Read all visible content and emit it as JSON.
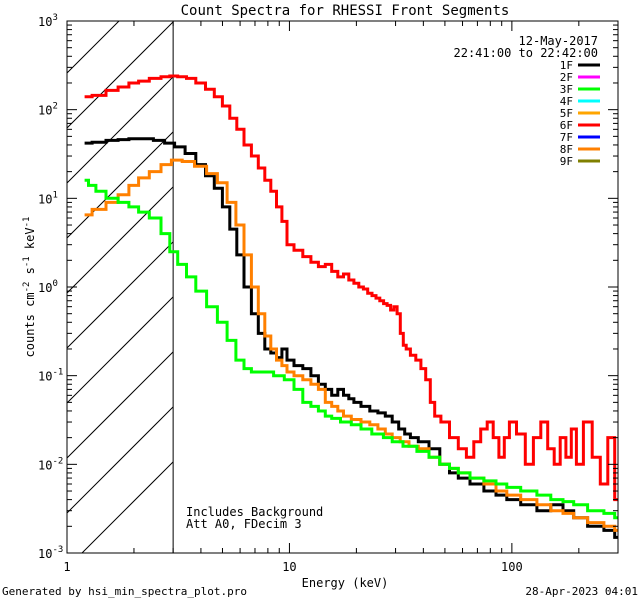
{
  "chart_data": {
    "type": "line",
    "title": "Count Spectra for RHESSI Front Segments",
    "xlabel": "Energy (keV)",
    "ylabel_parts": {
      "base": "counts cm",
      "exp1": "-2",
      "mid1": " s",
      "exp2": "-1",
      "mid2": " keV",
      "exp3": "-1"
    },
    "xscale": "log",
    "yscale": "log",
    "xlim": [
      1,
      300
    ],
    "ylim": [
      0.001,
      1000
    ],
    "x_ticks": [
      {
        "v": 1,
        "label": "1"
      },
      {
        "v": 10,
        "label": "10"
      },
      {
        "v": 100,
        "label": "100"
      }
    ],
    "y_ticks": [
      {
        "v": 0.001,
        "base": "10",
        "exp": "-3"
      },
      {
        "v": 0.01,
        "base": "10",
        "exp": "-2"
      },
      {
        "v": 0.1,
        "base": "10",
        "exp": "-1"
      },
      {
        "v": 1,
        "base": "10",
        "exp": "0"
      },
      {
        "v": 10,
        "base": "10",
        "exp": "1"
      },
      {
        "v": 100,
        "base": "10",
        "exp": "2"
      },
      {
        "v": 1000,
        "base": "10",
        "exp": "3"
      }
    ],
    "vline_x": 3.0,
    "hatched_region": [
      1,
      3
    ],
    "date_label": "12-May-2017",
    "time_label": "22:41:00 to 22:42:00",
    "legend": [
      {
        "name": "1F",
        "color": "#000000"
      },
      {
        "name": "2F",
        "color": "#ff00ff"
      },
      {
        "name": "3F",
        "color": "#00ff00"
      },
      {
        "name": "4F",
        "color": "#00ffff"
      },
      {
        "name": "5F",
        "color": "#ffa500"
      },
      {
        "name": "6F",
        "color": "#ff0000"
      },
      {
        "name": "7F",
        "color": "#0000ff"
      },
      {
        "name": "8F",
        "color": "#ff8000"
      },
      {
        "name": "9F",
        "color": "#808000"
      }
    ],
    "annotation_lines": [
      "Includes Background",
      "Att A0, FDecim 3"
    ],
    "series": [
      {
        "name": "6F",
        "color": "#ff0000",
        "points": [
          [
            1.2,
            140
          ],
          [
            1.4,
            145
          ],
          [
            1.6,
            165
          ],
          [
            1.8,
            180
          ],
          [
            2.0,
            200
          ],
          [
            2.2,
            210
          ],
          [
            2.5,
            225
          ],
          [
            2.8,
            235
          ],
          [
            3.0,
            240
          ],
          [
            3.3,
            235
          ],
          [
            3.6,
            225
          ],
          [
            4.0,
            200
          ],
          [
            4.4,
            170
          ],
          [
            4.8,
            140
          ],
          [
            5.2,
            110
          ],
          [
            5.6,
            80
          ],
          [
            6.0,
            60
          ],
          [
            6.5,
            40
          ],
          [
            7.0,
            30
          ],
          [
            7.5,
            22
          ],
          [
            8.0,
            16
          ],
          [
            8.5,
            12
          ],
          [
            9.0,
            8
          ],
          [
            9.5,
            5.5
          ],
          [
            10.0,
            3.0
          ],
          [
            11,
            2.6
          ],
          [
            12,
            2.2
          ],
          [
            13,
            1.9
          ],
          [
            14,
            1.7
          ],
          [
            15,
            1.8
          ],
          [
            16,
            1.5
          ],
          [
            17,
            1.3
          ],
          [
            18,
            1.4
          ],
          [
            19,
            1.2
          ],
          [
            20,
            1.1
          ],
          [
            21,
            1.0
          ],
          [
            22,
            0.95
          ],
          [
            23,
            0.85
          ],
          [
            24,
            0.8
          ],
          [
            25,
            0.75
          ],
          [
            26,
            0.7
          ],
          [
            27,
            0.65
          ],
          [
            28,
            0.62
          ],
          [
            29,
            0.55
          ],
          [
            30,
            0.6
          ],
          [
            31,
            0.5
          ],
          [
            32,
            0.3
          ],
          [
            33,
            0.22
          ],
          [
            34,
            0.2
          ],
          [
            36,
            0.17
          ],
          [
            38,
            0.15
          ],
          [
            40,
            0.12
          ],
          [
            42,
            0.09
          ],
          [
            44,
            0.05
          ],
          [
            46,
            0.035
          ],
          [
            50,
            0.03
          ],
          [
            55,
            0.02
          ],
          [
            60,
            0.015
          ],
          [
            65,
            0.012
          ],
          [
            70,
            0.018
          ],
          [
            75,
            0.025
          ],
          [
            80,
            0.03
          ],
          [
            85,
            0.02
          ],
          [
            90,
            0.012
          ],
          [
            95,
            0.02
          ],
          [
            100,
            0.03
          ],
          [
            110,
            0.022
          ],
          [
            120,
            0.01
          ],
          [
            130,
            0.02
          ],
          [
            140,
            0.03
          ],
          [
            150,
            0.015
          ],
          [
            160,
            0.01
          ],
          [
            170,
            0.02
          ],
          [
            180,
            0.012
          ],
          [
            190,
            0.025
          ],
          [
            200,
            0.01
          ],
          [
            220,
            0.03
          ],
          [
            240,
            0.012
          ],
          [
            260,
            0.006
          ],
          [
            280,
            0.02
          ],
          [
            300,
            0.004
          ]
        ]
      },
      {
        "name": "1F",
        "color": "#000000",
        "points": [
          [
            1.2,
            42
          ],
          [
            1.4,
            43
          ],
          [
            1.6,
            45
          ],
          [
            1.8,
            46
          ],
          [
            2.0,
            47
          ],
          [
            2.3,
            47
          ],
          [
            2.6,
            45
          ],
          [
            2.9,
            42
          ],
          [
            3.2,
            38
          ],
          [
            3.6,
            32
          ],
          [
            4.0,
            24
          ],
          [
            4.4,
            18
          ],
          [
            4.8,
            13
          ],
          [
            5.2,
            8
          ],
          [
            5.6,
            4.5
          ],
          [
            6.0,
            2.3
          ],
          [
            6.5,
            1.0
          ],
          [
            7.0,
            0.5
          ],
          [
            7.5,
            0.3
          ],
          [
            8.0,
            0.2
          ],
          [
            8.5,
            0.18
          ],
          [
            9.0,
            0.16
          ],
          [
            9.5,
            0.2
          ],
          [
            10,
            0.15
          ],
          [
            11,
            0.13
          ],
          [
            12,
            0.12
          ],
          [
            13,
            0.1
          ],
          [
            14,
            0.08
          ],
          [
            15,
            0.07
          ],
          [
            16,
            0.06
          ],
          [
            17,
            0.07
          ],
          [
            18,
            0.06
          ],
          [
            19,
            0.055
          ],
          [
            20,
            0.05
          ],
          [
            22,
            0.045
          ],
          [
            24,
            0.04
          ],
          [
            26,
            0.038
          ],
          [
            28,
            0.035
          ],
          [
            30,
            0.03
          ],
          [
            32,
            0.025
          ],
          [
            34,
            0.022
          ],
          [
            36,
            0.02
          ],
          [
            40,
            0.018
          ],
          [
            45,
            0.015
          ],
          [
            50,
            0.01
          ],
          [
            55,
            0.008
          ],
          [
            60,
            0.007
          ],
          [
            70,
            0.006
          ],
          [
            80,
            0.005
          ],
          [
            90,
            0.0045
          ],
          [
            100,
            0.004
          ],
          [
            120,
            0.0035
          ],
          [
            140,
            0.003
          ],
          [
            160,
            0.0035
          ],
          [
            180,
            0.003
          ],
          [
            200,
            0.0025
          ],
          [
            240,
            0.002
          ],
          [
            280,
            0.0018
          ],
          [
            300,
            0.0015
          ]
        ]
      },
      {
        "name": "8F",
        "color": "#ff8000",
        "points": [
          [
            1.2,
            6.5
          ],
          [
            1.4,
            7.5
          ],
          [
            1.6,
            9
          ],
          [
            1.8,
            11
          ],
          [
            2.0,
            14
          ],
          [
            2.2,
            17
          ],
          [
            2.5,
            20
          ],
          [
            2.8,
            24
          ],
          [
            3.1,
            27
          ],
          [
            3.5,
            26
          ],
          [
            4.0,
            23
          ],
          [
            4.5,
            19
          ],
          [
            5.0,
            15
          ],
          [
            5.5,
            9
          ],
          [
            6.0,
            5
          ],
          [
            6.5,
            2.3
          ],
          [
            7.0,
            1.0
          ],
          [
            7.5,
            0.5
          ],
          [
            8.0,
            0.28
          ],
          [
            8.5,
            0.2
          ],
          [
            9.0,
            0.15
          ],
          [
            9.5,
            0.13
          ],
          [
            10,
            0.11
          ],
          [
            11,
            0.1
          ],
          [
            12,
            0.09
          ],
          [
            13,
            0.08
          ],
          [
            14,
            0.07
          ],
          [
            15,
            0.05
          ],
          [
            16,
            0.045
          ],
          [
            17,
            0.04
          ],
          [
            18,
            0.035
          ],
          [
            20,
            0.032
          ],
          [
            22,
            0.03
          ],
          [
            24,
            0.028
          ],
          [
            26,
            0.025
          ],
          [
            28,
            0.022
          ],
          [
            30,
            0.02
          ],
          [
            33,
            0.018
          ],
          [
            36,
            0.016
          ],
          [
            40,
            0.015
          ],
          [
            45,
            0.012
          ],
          [
            50,
            0.01
          ],
          [
            55,
            0.009
          ],
          [
            60,
            0.008
          ],
          [
            70,
            0.007
          ],
          [
            80,
            0.006
          ],
          [
            90,
            0.005
          ],
          [
            100,
            0.0045
          ],
          [
            120,
            0.004
          ],
          [
            140,
            0.0035
          ],
          [
            160,
            0.003
          ],
          [
            180,
            0.0028
          ],
          [
            200,
            0.0025
          ],
          [
            240,
            0.0022
          ],
          [
            280,
            0.002
          ],
          [
            300,
            0.0018
          ]
        ]
      },
      {
        "name": "3F",
        "color": "#00ff00",
        "points": [
          [
            1.2,
            16
          ],
          [
            1.3,
            14
          ],
          [
            1.4,
            12
          ],
          [
            1.6,
            10
          ],
          [
            1.8,
            9
          ],
          [
            2.0,
            8
          ],
          [
            2.2,
            7
          ],
          [
            2.5,
            6
          ],
          [
            2.8,
            4
          ],
          [
            3.0,
            2.5
          ],
          [
            3.3,
            1.8
          ],
          [
            3.6,
            1.3
          ],
          [
            4.0,
            0.9
          ],
          [
            4.5,
            0.6
          ],
          [
            5.0,
            0.4
          ],
          [
            5.5,
            0.25
          ],
          [
            6.0,
            0.15
          ],
          [
            6.5,
            0.12
          ],
          [
            7.0,
            0.11
          ],
          [
            8.0,
            0.11
          ],
          [
            9.0,
            0.1
          ],
          [
            10,
            0.09
          ],
          [
            11,
            0.07
          ],
          [
            12,
            0.05
          ],
          [
            13,
            0.045
          ],
          [
            14,
            0.04
          ],
          [
            15,
            0.035
          ],
          [
            16,
            0.033
          ],
          [
            18,
            0.03
          ],
          [
            20,
            0.028
          ],
          [
            22,
            0.025
          ],
          [
            25,
            0.022
          ],
          [
            28,
            0.02
          ],
          [
            30,
            0.018
          ],
          [
            35,
            0.016
          ],
          [
            40,
            0.014
          ],
          [
            45,
            0.012
          ],
          [
            50,
            0.01
          ],
          [
            55,
            0.009
          ],
          [
            60,
            0.008
          ],
          [
            70,
            0.007
          ],
          [
            80,
            0.0065
          ],
          [
            90,
            0.006
          ],
          [
            100,
            0.0055
          ],
          [
            120,
            0.005
          ],
          [
            140,
            0.0045
          ],
          [
            160,
            0.004
          ],
          [
            180,
            0.0038
          ],
          [
            200,
            0.0035
          ],
          [
            240,
            0.003
          ],
          [
            280,
            0.0028
          ],
          [
            300,
            0.0025
          ]
        ]
      }
    ]
  },
  "footer": {
    "left": "Generated by hsi_min_spectra_plot.pro",
    "right": "28-Apr-2023 04:01"
  }
}
